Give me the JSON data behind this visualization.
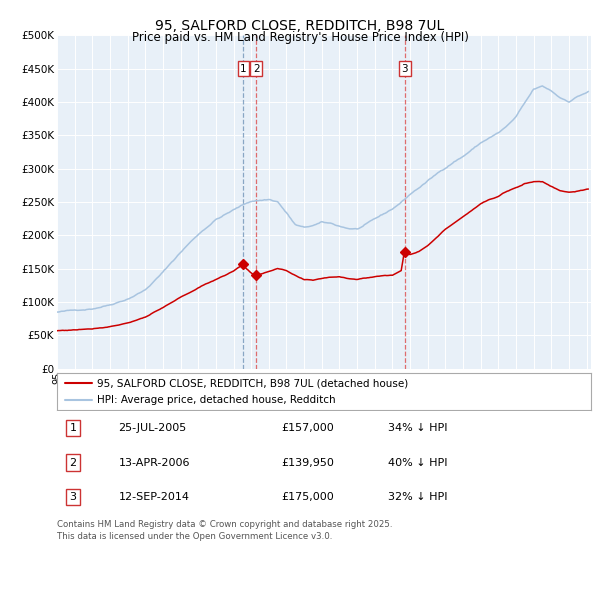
{
  "title": "95, SALFORD CLOSE, REDDITCH, B98 7UL",
  "subtitle": "Price paid vs. HM Land Registry's House Price Index (HPI)",
  "legend_line1": "95, SALFORD CLOSE, REDDITCH, B98 7UL (detached house)",
  "legend_line2": "HPI: Average price, detached house, Redditch",
  "hpi_color": "#a8c4e0",
  "property_color": "#cc0000",
  "background_chart": "#e8f0f8",
  "sale_dates": [
    "2005-07-25",
    "2006-04-13",
    "2014-09-12"
  ],
  "sale_prices": [
    157000,
    139950,
    175000
  ],
  "table_rows": [
    [
      "1",
      "25-JUL-2005",
      "£157,000",
      "34% ↓ HPI"
    ],
    [
      "2",
      "13-APR-2006",
      "£139,950",
      "40% ↓ HPI"
    ],
    [
      "3",
      "12-SEP-2014",
      "£175,000",
      "32% ↓ HPI"
    ]
  ],
  "footer": "Contains HM Land Registry data © Crown copyright and database right 2025.\nThis data is licensed under the Open Government Licence v3.0.",
  "ytick_labels": [
    "£0",
    "£50K",
    "£100K",
    "£150K",
    "£200K",
    "£250K",
    "£300K",
    "£350K",
    "£400K",
    "£450K",
    "£500K"
  ]
}
